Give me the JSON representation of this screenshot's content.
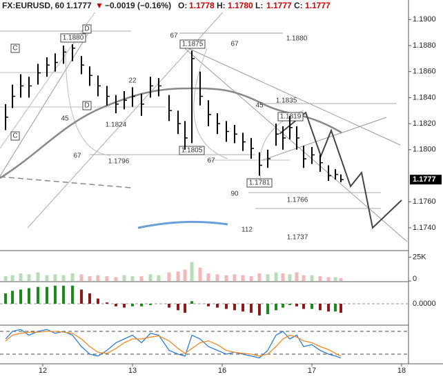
{
  "chart_data": {
    "type": "ohlc",
    "symbol": "FX:EURUSD, 60",
    "last_price": "1.1777",
    "direction": "▼",
    "change": "−0.0019 (−0.16%)",
    "ohlc_header": [
      {
        "label": "O:",
        "value": "1.1778"
      },
      {
        "label": "H:",
        "value": "1.1780"
      },
      {
        "label": "L:",
        "value": "1.1777"
      },
      {
        "label": "C:",
        "value": "1.1777"
      }
    ],
    "x": [
      0.585,
      0.662,
      0.754,
      0.846,
      0.946,
      1.046,
      1.138,
      1.231,
      1.331,
      1.431,
      1.523,
      1.615,
      1.715,
      1.815,
      1.908,
      2.0,
      2.1,
      2.2,
      2.292,
      2.408,
      2.508,
      2.585,
      2.662,
      2.754,
      2.846,
      2.946,
      3.046,
      3.138,
      3.231,
      3.323,
      3.415,
      3.508,
      3.6,
      3.677,
      3.754,
      3.831,
      3.908,
      4.0,
      4.092,
      4.185,
      4.262,
      4.323
    ],
    "high": [
      1.1835,
      1.185,
      1.1858,
      1.1856,
      1.1866,
      1.1871,
      1.1874,
      1.188,
      1.1881,
      1.1872,
      1.1864,
      1.1857,
      1.1849,
      1.1842,
      1.1845,
      1.1848,
      1.1843,
      1.1856,
      1.1855,
      1.1842,
      1.183,
      1.1822,
      1.1876,
      1.186,
      1.1838,
      1.1828,
      1.1822,
      1.1819,
      1.1813,
      1.1809,
      1.1798,
      1.18,
      1.182,
      1.1818,
      1.1826,
      1.1818,
      1.1803,
      1.1802,
      1.1796,
      1.1788,
      1.1785,
      1.1781
    ],
    "low": [
      1.1815,
      1.1832,
      1.184,
      1.184,
      1.185,
      1.1856,
      1.186,
      1.1866,
      1.1868,
      1.1858,
      1.1849,
      1.1841,
      1.1834,
      1.1828,
      1.1831,
      1.1833,
      1.1826,
      1.184,
      1.1841,
      1.1822,
      1.1812,
      1.18,
      1.1805,
      1.1834,
      1.1818,
      1.1812,
      1.1806,
      1.1805,
      1.1799,
      1.1793,
      1.178,
      1.1786,
      1.1803,
      1.18,
      1.1808,
      1.18,
      1.1786,
      1.1789,
      1.1783,
      1.1776,
      1.1777,
      1.1775
    ],
    "close": [
      1.1825,
      1.1841,
      1.1849,
      1.1849,
      1.1859,
      1.1865,
      1.1867,
      1.1875,
      1.1878,
      1.1865,
      1.1857,
      1.1849,
      1.1841,
      1.1835,
      1.1838,
      1.1841,
      1.1835,
      1.1849,
      1.1849,
      1.183,
      1.182,
      1.1809,
      1.187,
      1.1841,
      1.1827,
      1.182,
      1.1814,
      1.1812,
      1.1806,
      1.1801,
      1.1788,
      1.1793,
      1.1812,
      1.1809,
      1.1817,
      1.1809,
      1.1793,
      1.1796,
      1.179,
      1.178,
      1.1781,
      1.1777
    ],
    "color": "#000000",
    "xlim": [
      0.523,
      5.077
    ],
    "xticks": [
      {
        "value": 1,
        "label": "12"
      },
      {
        "value": 2,
        "label": "13"
      },
      {
        "value": 3,
        "label": "16"
      },
      {
        "value": 4,
        "label": "17"
      },
      {
        "value": 5,
        "label": "18"
      }
    ],
    "ylim": [
      1.1723,
      1.1915
    ],
    "yticks": [
      {
        "value": 1.19,
        "label": "1.1900"
      },
      {
        "value": 1.188,
        "label": "1.1880"
      },
      {
        "value": 1.186,
        "label": "1.1860"
      },
      {
        "value": 1.184,
        "label": "1.1840"
      },
      {
        "value": 1.182,
        "label": "1.1820"
      },
      {
        "value": 1.18,
        "label": "1.1800"
      },
      {
        "value": 1.176,
        "label": "1.1760"
      },
      {
        "value": 1.174,
        "label": "1.1740"
      }
    ],
    "annotations": [
      "1.1880",
      "D",
      "C",
      "D",
      "C",
      "67",
      "1.1875",
      "67",
      "1.1880",
      "22",
      "45",
      "1.1824",
      "45",
      "1.1835",
      "1.1819",
      "67",
      "1.1796",
      "1.1805",
      "67",
      "1.1781",
      "90",
      "1.1766",
      "112",
      "1.1737"
    ],
    "volume": {
      "values": [
        5,
        6,
        8,
        7,
        9,
        6,
        7,
        6,
        8,
        7,
        5,
        6,
        5,
        4,
        6,
        5,
        5,
        7,
        6,
        9,
        10,
        12,
        20,
        14,
        8,
        7,
        6,
        7,
        6,
        5,
        8,
        7,
        9,
        8,
        7,
        9,
        6,
        6,
        5,
        4,
        4,
        3
      ],
      "ylim": [
        0,
        32
      ],
      "yticks": [
        {
          "value": 25,
          "label": "25K"
        },
        0
      ],
      "up_color": "#b7dcb7",
      "down_color": "#f0b8b8"
    },
    "macd": {
      "values": [
        0.0008,
        0.001,
        0.0011,
        0.0012,
        0.0013,
        0.0013,
        0.0014,
        0.0014,
        0.0014,
        0.0011,
        0.0008,
        0.0004,
        0.0001,
        -0.0002,
        -0.0003,
        -0.0002,
        -0.0002,
        -0.0001,
        0,
        -0.0003,
        -0.0005,
        -0.0007,
        0.0002,
        0,
        -0.0002,
        -0.0003,
        -0.0004,
        -0.0005,
        -0.0006,
        -0.0007,
        -0.0009,
        -0.0008,
        -0.0005,
        -0.0003,
        -0.0001,
        -0.0002,
        -0.0004,
        -0.0004,
        -0.0005,
        -0.0006,
        -0.0006,
        -0.0007
      ],
      "ylim": [
        -0.0016,
        0.0016
      ],
      "yticks": [
        {
          "value": 0,
          "label": "0.0000"
        }
      ],
      "up_color": "#1a8a1a",
      "down_color": "#8b1a1a"
    },
    "stochastic": {
      "series": [
        {
          "name": "%K",
          "color": "#2b7bd6",
          "values": [
            60,
            80,
            85,
            70,
            80,
            85,
            75,
            80,
            70,
            40,
            20,
            15,
            30,
            50,
            60,
            70,
            50,
            75,
            70,
            30,
            20,
            15,
            70,
            60,
            40,
            30,
            20,
            25,
            20,
            15,
            10,
            30,
            70,
            80,
            60,
            70,
            40,
            45,
            30,
            20,
            15,
            10
          ]
        },
        {
          "name": "%D",
          "color": "#f08a24",
          "values": [
            55,
            70,
            75,
            78,
            78,
            80,
            80,
            78,
            75,
            60,
            40,
            25,
            22,
            35,
            50,
            60,
            60,
            65,
            68,
            55,
            35,
            22,
            35,
            50,
            55,
            45,
            30,
            25,
            22,
            20,
            15,
            20,
            40,
            60,
            70,
            65,
            55,
            50,
            40,
            32,
            22,
            15
          ]
        }
      ],
      "ylim": [
        0,
        100
      ],
      "guides": [
        20,
        80
      ]
    }
  }
}
